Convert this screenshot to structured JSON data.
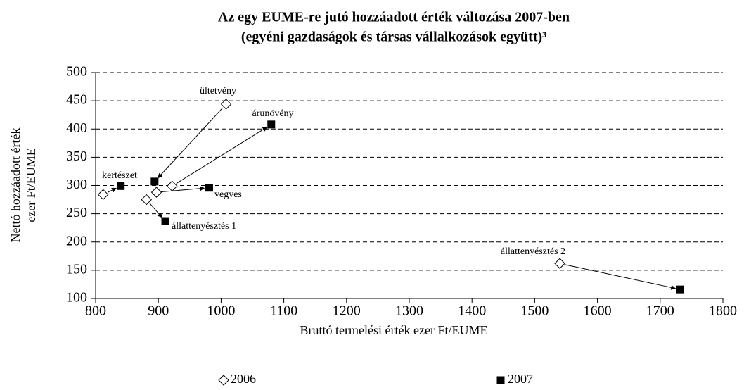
{
  "chart_data": {
    "type": "scatter",
    "title": [
      "Az egy EUME-re jutó hozzáadott érték változása 2007-ben",
      "(egyéni gazdaságok és társas vállalkozások együtt)³"
    ],
    "xlabel": "Bruttó termelési érték ezer Ft/EUME",
    "ylabel": [
      "Nettó hozzáadott érték",
      "ezer Ft/EUME"
    ],
    "labels": [
      "kertészet",
      "ültetvény",
      "árunövény",
      "vegyes",
      "állattenyésztés 1",
      "állattenyésztés 2"
    ],
    "series": [
      {
        "name": "2006",
        "color": "#ffffff",
        "marker": "diamond",
        "x": [
          812,
          1008,
          922,
          897,
          881,
          1540
        ],
        "values": [
          284,
          444,
          299,
          288,
          275,
          162
        ]
      },
      {
        "name": "2007",
        "color": "#000000",
        "marker": "square",
        "x": [
          840,
          894,
          1080,
          981,
          911,
          1732
        ],
        "values": [
          299,
          307,
          408,
          296,
          237,
          116
        ]
      }
    ],
    "xlim": [
      800,
      1800
    ],
    "xticks": [
      800,
      900,
      1000,
      1100,
      1200,
      1300,
      1400,
      1500,
      1600,
      1700,
      1800
    ],
    "ylim": [
      100,
      500
    ],
    "yticks": [
      100,
      150,
      200,
      250,
      300,
      350,
      400,
      450,
      500
    ],
    "grid": true,
    "legend": "bottom"
  }
}
